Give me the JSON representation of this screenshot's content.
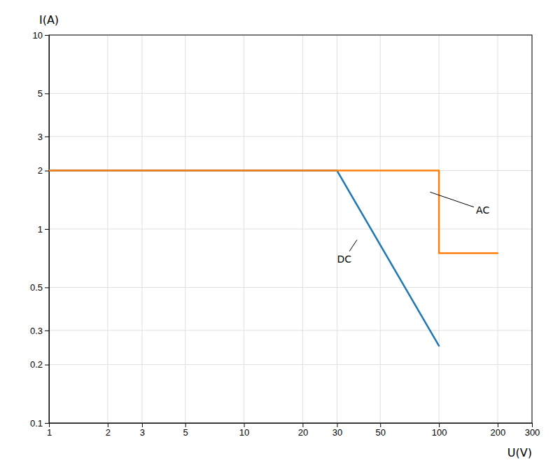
{
  "chart_data": {
    "type": "line",
    "log": true,
    "grid": true,
    "x_label": "U(V)",
    "y_label": "I(A)",
    "xlim": [
      1,
      300
    ],
    "ylim": [
      0.1,
      10
    ],
    "xticks": [
      1,
      2,
      3,
      5,
      10,
      20,
      30,
      50,
      100,
      200,
      300
    ],
    "yticks": [
      0.1,
      0.2,
      0.3,
      0.5,
      1,
      2,
      3,
      5,
      10
    ],
    "series": [
      {
        "x": [
          1,
          30,
          100
        ],
        "values": [
          2,
          2,
          0.25
        ]
      },
      {
        "x": [
          1,
          100,
          100,
          200
        ],
        "values": [
          2,
          2,
          0.75,
          0.75
        ]
      }
    ],
    "annotations": [
      {
        "text": "DC",
        "x": 38,
        "y": 0.88,
        "text_x": 30,
        "text_y": 0.7
      },
      {
        "text": "AC",
        "x": 90,
        "y": 1.55,
        "text_x": 155,
        "text_y": 1.25
      }
    ]
  }
}
